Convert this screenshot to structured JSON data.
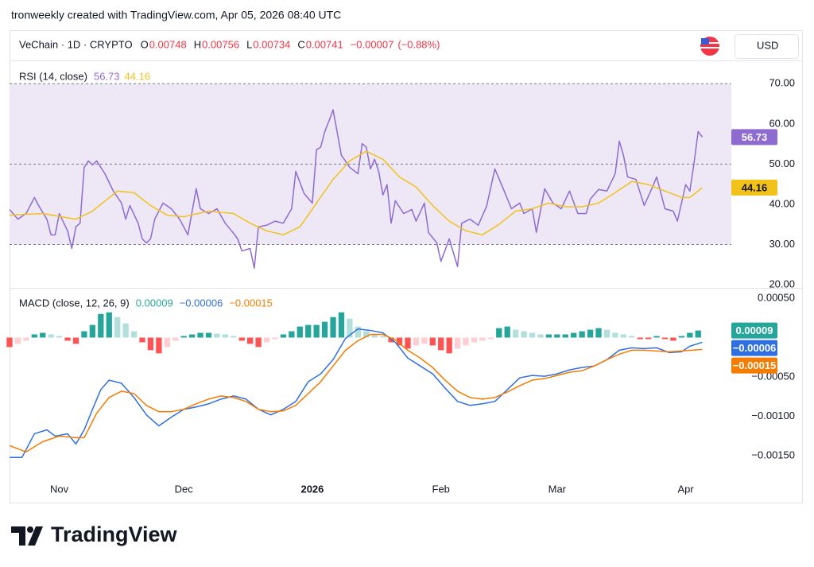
{
  "header": {
    "attribution": "tronweekly created with TradingView.com, Apr 05, 2026 08:40 UTC",
    "symbol": "VeChain · 1D · CRYPTO",
    "ohlc": [
      {
        "label": "O",
        "value": 0.00748
      },
      {
        "label": "H",
        "value": 0.00756
      },
      {
        "label": "L",
        "value": 0.00734
      },
      {
        "label": "C",
        "value": 0.00741
      }
    ],
    "change": {
      "value": -7e-05,
      "label": "−0.00007"
    },
    "change_percent": {
      "value": -0.88,
      "label": "(−0.88%)"
    },
    "currency": "USD",
    "brand": "TradingView"
  },
  "chart_data": [
    {
      "type": "line",
      "title": "RSI (14, close)",
      "xlim": [
        0,
        174
      ],
      "ylim": [
        20,
        75
      ],
      "yticks": [
        {
          "value": 20,
          "label": "20.00"
        },
        {
          "value": 30,
          "label": "30.00"
        },
        {
          "value": 40,
          "label": "40.00"
        },
        {
          "value": 50,
          "label": "50.00"
        },
        {
          "value": 60,
          "label": "60.00"
        },
        {
          "value": 70,
          "label": "70.00"
        }
      ],
      "band": [
        30,
        70
      ],
      "band_color": "#ede7f6",
      "midline": 50,
      "series": [
        {
          "color": "#8e6bd1",
          "badge_text_color": "#ffffff",
          "x": [
            0,
            2,
            4,
            6,
            7,
            9,
            10,
            11,
            12,
            14,
            15,
            16,
            17,
            18,
            19,
            20,
            21,
            23,
            25,
            27,
            28,
            29,
            31,
            32,
            33,
            34,
            35,
            37,
            39,
            41,
            43,
            45,
            46,
            48,
            50,
            52,
            54,
            55,
            56,
            58,
            59,
            60,
            62,
            64,
            66,
            68,
            69,
            71,
            73,
            74,
            75,
            76,
            77,
            78,
            80,
            82,
            84,
            85,
            86,
            87,
            88,
            89,
            90,
            91,
            92,
            93,
            95,
            97,
            98,
            100,
            101,
            103,
            104,
            106,
            108,
            109,
            111,
            113,
            115,
            117,
            119,
            121,
            123,
            124,
            126,
            127,
            129,
            131,
            133,
            135,
            137,
            139,
            140,
            142,
            144,
            146,
            147,
            148,
            149,
            151,
            153,
            155,
            156,
            158,
            160,
            161,
            163,
            164,
            165,
            166,
            167
          ],
          "values": [
            38.7,
            36.3,
            37.7,
            41.7,
            39.7,
            36.3,
            32.4,
            32.4,
            37.7,
            33.4,
            29.0,
            34.4,
            35.3,
            49.2,
            50.8,
            49.8,
            50.8,
            47.6,
            43.3,
            40.3,
            36.3,
            39.7,
            35.3,
            31.4,
            30.4,
            31.4,
            36.3,
            40.3,
            38.9,
            36.3,
            32.4,
            43.9,
            38.9,
            37.7,
            38.9,
            35.3,
            32.8,
            31.4,
            28.4,
            29.0,
            24.1,
            34.4,
            34.8,
            35.8,
            35.3,
            38.9,
            48.2,
            42.7,
            40.3,
            53.6,
            54.2,
            58.1,
            60.7,
            63.5,
            52.2,
            49.2,
            47.6,
            55.1,
            54.2,
            48.8,
            51.2,
            48.2,
            42.3,
            44.9,
            35.3,
            40.9,
            37.7,
            38.7,
            35.8,
            40.3,
            33.0,
            30.4,
            25.8,
            31.4,
            24.5,
            35.3,
            36.3,
            34.8,
            39.5,
            48.8,
            43.9,
            38.9,
            40.3,
            37.7,
            38.9,
            33.0,
            43.9,
            40.3,
            38.9,
            43.3,
            37.7,
            37.7,
            41.3,
            43.7,
            43.3,
            47.6,
            55.7,
            52.2,
            46.8,
            46.2,
            39.7,
            44.3,
            46.8,
            38.9,
            38.3,
            35.8,
            44.9,
            43.3,
            50.2,
            58.1,
            56.73
          ]
        },
        {
          "color": "#f2c21b",
          "badge_text_color": "#131722",
          "x": [
            0,
            8,
            16,
            20,
            26,
            30,
            34,
            38,
            42,
            48,
            54,
            58,
            62,
            66,
            70,
            74,
            78,
            82,
            86,
            90,
            94,
            98,
            102,
            106,
            110,
            114,
            118,
            122,
            126,
            130,
            134,
            138,
            142,
            146,
            150,
            154,
            158,
            162,
            164,
            167
          ],
          "values": [
            37.3,
            37.7,
            36.3,
            38.3,
            43.3,
            42.9,
            39.7,
            37.3,
            36.9,
            38.3,
            37.7,
            35.3,
            33.4,
            32.4,
            34.4,
            40.3,
            46.2,
            50.8,
            53.2,
            51.2,
            46.8,
            44.3,
            39.7,
            35.8,
            33.4,
            32.4,
            35.0,
            38.3,
            38.9,
            40.3,
            39.4,
            39.4,
            40.3,
            42.9,
            45.7,
            44.9,
            43.3,
            41.7,
            41.7,
            44.16
          ]
        }
      ]
    },
    {
      "type": "macd",
      "title": "MACD (close, 12, 26, 9)",
      "xlim": [
        0,
        174
      ],
      "ylim": [
        -0.00177,
        0.0006
      ],
      "yticks": [
        {
          "value": 0.0005,
          "label": "0.00050"
        },
        {
          "value": -0.0005,
          "label": "−0.00050"
        },
        {
          "value": -0.001,
          "label": "−0.00100"
        },
        {
          "value": -0.0015,
          "label": "−0.00150"
        }
      ],
      "xticks": [
        {
          "value": 12,
          "label": "Nov"
        },
        {
          "value": 42,
          "label": "Dec"
        },
        {
          "value": 73,
          "label": "2026"
        },
        {
          "value": 104,
          "label": "Feb"
        },
        {
          "value": 132,
          "label": "Mar"
        },
        {
          "value": 163,
          "label": "Apr"
        }
      ],
      "histogram": {
        "colors": {
          "rising_positive": "#26a69a",
          "falling_positive": "#b2dfdb",
          "falling_negative": "#ff5252",
          "rising_negative": "#ffcdd2"
        },
        "badge_color": "#26a69a",
        "x": [
          0,
          2,
          4,
          6,
          8,
          10,
          12,
          14,
          16,
          18,
          20,
          22,
          24,
          26,
          28,
          30,
          32,
          34,
          36,
          38,
          40,
          42,
          44,
          46,
          48,
          50,
          52,
          54,
          56,
          58,
          60,
          62,
          64,
          66,
          68,
          70,
          72,
          74,
          76,
          78,
          80,
          82,
          84,
          86,
          88,
          90,
          92,
          94,
          96,
          98,
          100,
          102,
          104,
          106,
          108,
          110,
          112,
          114,
          116,
          118,
          120,
          122,
          124,
          126,
          128,
          130,
          132,
          134,
          136,
          138,
          140,
          142,
          144,
          146,
          148,
          150,
          152,
          154,
          156,
          158,
          160,
          162,
          164,
          166
        ],
        "values": [
          -0.00012,
          -8e-05,
          -4e-05,
          4e-05,
          6e-05,
          4e-05,
          2e-05,
          -4e-05,
          -8e-05,
          8e-05,
          0.00016,
          0.0003,
          0.00032,
          0.00026,
          0.00018,
          8e-05,
          -6e-05,
          -0.00016,
          -0.0002,
          -0.00012,
          -4e-05,
          2e-05,
          4e-05,
          6e-05,
          6e-05,
          5e-05,
          4e-05,
          2e-05,
          -4e-05,
          -8e-05,
          -0.00012,
          -6e-05,
          -2e-05,
          4e-05,
          8e-05,
          0.00014,
          0.00016,
          0.00016,
          0.0002,
          0.00026,
          0.00032,
          0.00024,
          0.00014,
          8e-05,
          4e-05,
          2e-05,
          -6e-05,
          -0.0001,
          -0.00014,
          -0.0001,
          -8e-05,
          -0.0001,
          -0.00016,
          -0.0002,
          -0.00014,
          -0.0001,
          -6e-05,
          -4e-05,
          -2e-05,
          0.00012,
          0.00014,
          0.0001,
          8e-05,
          6e-05,
          4e-05,
          4e-05,
          4e-05,
          4e-05,
          6e-05,
          8e-05,
          0.0001,
          0.00012,
          0.0001,
          6e-05,
          4e-05,
          2e-05,
          -2e-05,
          -2e-05,
          2e-05,
          -2e-05,
          -4e-05,
          2e-05,
          6e-05,
          9e-05
        ]
      },
      "series": [
        {
          "color": "#2f6fe0",
          "last": {
            "value": -6e-05,
            "label": "−0.00006"
          },
          "x": [
            0,
            3,
            6,
            9,
            11,
            14,
            16,
            18,
            20,
            22,
            24,
            27,
            30,
            33,
            36,
            39,
            42,
            45,
            48,
            51,
            54,
            57,
            60,
            63,
            66,
            69,
            72,
            75,
            78,
            81,
            84,
            87,
            90,
            93,
            96,
            99,
            102,
            105,
            108,
            111,
            114,
            117,
            120,
            123,
            126,
            129,
            132,
            135,
            138,
            141,
            144,
            147,
            150,
            153,
            156,
            159,
            162,
            164,
            167
          ],
          "values": [
            -0.00152,
            -0.00152,
            -0.00122,
            -0.00117,
            -0.00125,
            -0.00122,
            -0.00135,
            -0.00117,
            -0.00091,
            -0.00066,
            -0.00054,
            -0.00058,
            -0.00076,
            -0.00098,
            -0.00112,
            -0.00101,
            -0.00091,
            -0.00088,
            -0.00084,
            -0.00078,
            -0.00074,
            -0.00078,
            -0.00091,
            -0.00098,
            -0.00091,
            -0.00081,
            -0.00056,
            -0.00046,
            -0.00028,
            -1e-05,
            0.00011,
            9e-05,
            6e-05,
            -6e-05,
            -0.00026,
            -0.00036,
            -0.00046,
            -0.00064,
            -0.00081,
            -0.00086,
            -0.00084,
            -0.00081,
            -0.00066,
            -0.00051,
            -0.00048,
            -0.00049,
            -0.00046,
            -0.00041,
            -0.00038,
            -0.00036,
            -0.00028,
            -0.00016,
            -0.00013,
            -0.00014,
            -0.00013,
            -0.00019,
            -0.00018,
            -0.00011,
            -6e-05
          ]
        },
        {
          "color": "#f57c00",
          "last": {
            "value": -0.00015,
            "label": "−0.00015"
          },
          "x": [
            0,
            4,
            8,
            12,
            16,
            18,
            21,
            24,
            27,
            30,
            33,
            36,
            39,
            42,
            45,
            48,
            51,
            54,
            57,
            60,
            63,
            66,
            69,
            72,
            75,
            78,
            81,
            84,
            87,
            90,
            93,
            96,
            99,
            102,
            105,
            108,
            111,
            114,
            117,
            120,
            123,
            126,
            129,
            132,
            135,
            138,
            141,
            144,
            147,
            150,
            153,
            156,
            159,
            162,
            167
          ],
          "values": [
            -0.00137,
            -0.00145,
            -0.00132,
            -0.00125,
            -0.00127,
            -0.00127,
            -0.00096,
            -0.00076,
            -0.00068,
            -0.00071,
            -0.00086,
            -0.00094,
            -0.00094,
            -0.00091,
            -0.00084,
            -0.00078,
            -0.00074,
            -0.00076,
            -0.00081,
            -0.00091,
            -0.00094,
            -0.00093,
            -0.00086,
            -0.00071,
            -0.00056,
            -0.00036,
            -0.00016,
            -4e-05,
            4e-05,
            4e-05,
            -3e-05,
            -0.00016,
            -0.00026,
            -0.00038,
            -0.00054,
            -0.00068,
            -0.00076,
            -0.00078,
            -0.00076,
            -0.00069,
            -0.00061,
            -0.00054,
            -0.00052,
            -0.00048,
            -0.00044,
            -0.00042,
            -0.00036,
            -0.00028,
            -0.00021,
            -0.00016,
            -0.00016,
            -0.00017,
            -0.00018,
            -0.00017,
            -0.00015
          ]
        }
      ]
    }
  ]
}
